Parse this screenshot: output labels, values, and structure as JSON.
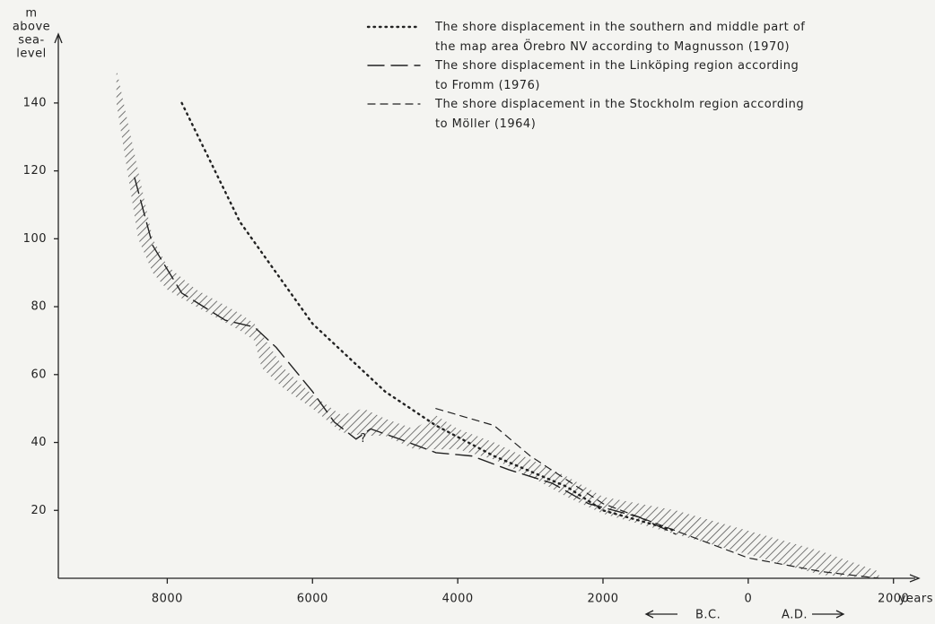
{
  "chart_data": {
    "type": "line",
    "y_label_lines": [
      "m",
      "above",
      "sea-",
      "level"
    ],
    "x_label": "years",
    "era_labels": [
      "B.C.",
      "A.D."
    ],
    "annotation": {
      "text": "?",
      "x": -5300,
      "y": 41
    },
    "xlim": [
      -9500,
      2300
    ],
    "ylim": [
      0,
      150
    ],
    "xticks": [
      {
        "value": -8000,
        "label": "8000"
      },
      {
        "value": -6000,
        "label": "6000"
      },
      {
        "value": -4000,
        "label": "4000"
      },
      {
        "value": -2000,
        "label": "2000"
      },
      0,
      2000
    ],
    "yticks": [
      20,
      40,
      60,
      80,
      100,
      120,
      140
    ],
    "band": {
      "color": "#444444",
      "x": [
        -8700,
        -8400,
        -8200,
        -8000,
        -7600,
        -7000,
        -6800,
        -6700,
        -6400,
        -6000,
        -5600,
        -5300,
        -5000,
        -4600,
        -4300,
        -4000,
        -3500,
        -3000,
        -2500,
        -2000,
        -1500,
        -1000,
        0,
        1000,
        1800
      ],
      "upper": [
        150,
        120,
        100,
        92,
        85,
        78,
        75,
        72,
        62,
        54,
        48,
        50,
        47,
        44,
        48,
        44,
        40,
        35,
        30,
        24,
        22,
        20,
        14,
        8,
        2
      ],
      "lower": [
        140,
        100,
        90,
        85,
        80,
        73,
        70,
        62,
        56,
        50,
        43,
        42,
        42,
        38,
        38,
        38,
        35,
        30,
        24,
        19,
        16,
        13,
        7,
        1,
        0
      ]
    },
    "series": [
      {
        "name": "The shore displacement in the southern and middle part of\nthe map area Örebro NV according to Magnusson (1970)",
        "color": "#222222",
        "dash": "dotted",
        "x": [
          -7800,
          -7000,
          -6000,
          -5000,
          -4300,
          -3500,
          -2500,
          -2000,
          -1000
        ],
        "values": [
          140,
          105,
          75,
          55,
          45,
          36,
          27,
          20,
          14
        ]
      },
      {
        "name": "The shore displacement in the Linköping region according\nto Fromm (1976)",
        "color": "#222222",
        "dash": "long",
        "x": [
          -8450,
          -8200,
          -7800,
          -7200,
          -6800,
          -6500,
          -6000,
          -5700,
          -5400,
          -5200,
          -4800,
          -4300,
          -3800,
          -3300,
          -2700,
          -2200,
          -1500,
          -1000
        ],
        "values": [
          118,
          98,
          84,
          76,
          74,
          68,
          55,
          46,
          41,
          44,
          41,
          37,
          36,
          32,
          28,
          22,
          18,
          13
        ]
      },
      {
        "name": "The shore displacement in the Stockholm region according\nto Möller (1964)",
        "color": "#222222",
        "dash": "short",
        "x": [
          -4300,
          -3500,
          -3000,
          -2000,
          -1000,
          0,
          1000,
          1800
        ],
        "values": [
          50,
          45,
          36,
          22,
          14,
          6,
          2,
          0
        ]
      }
    ]
  }
}
